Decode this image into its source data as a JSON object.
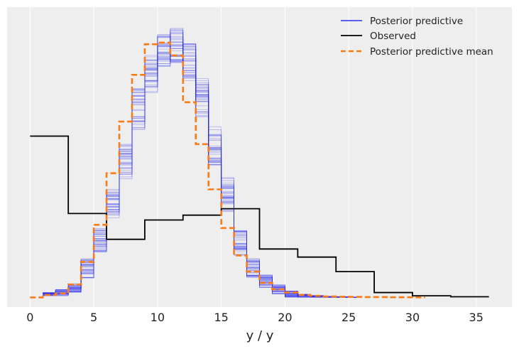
{
  "chart_data": {
    "type": "line",
    "title": "",
    "xlabel": "y / y",
    "ylabel": "",
    "xlim": [
      -1.8,
      37.8
    ],
    "ylim": [
      -0.006,
      0.18
    ],
    "grid": true,
    "legend_position": "top-right",
    "x_ticks": [
      0,
      5,
      10,
      15,
      20,
      25,
      30,
      35
    ],
    "colors": {
      "background": "#eeeeee",
      "grid": "#ffffff",
      "posterior_predictive": "#2a2eec",
      "observed": "#000000",
      "posterior_predictive_mean": "#fa7c17"
    },
    "series": [
      {
        "name": "Posterior predictive",
        "style": "step",
        "note_draws": 40,
        "bin_edges": [
          1,
          2,
          3,
          4,
          5,
          6,
          7,
          8,
          9,
          10,
          11,
          12,
          13,
          14,
          15,
          16,
          17,
          18,
          19,
          20,
          21,
          22,
          23,
          24,
          25,
          26
        ],
        "values": [
          0.002,
          0.003,
          0.006,
          0.018,
          0.035,
          0.058,
          0.084,
          0.117,
          0.139,
          0.154,
          0.156,
          0.146,
          0.124,
          0.094,
          0.064,
          0.034,
          0.018,
          0.01,
          0.005,
          0.002,
          0.001,
          0.0006,
          0.0003,
          0.0002,
          0.0001
        ],
        "spread": [
          0.001,
          0.002,
          0.003,
          0.006,
          0.008,
          0.009,
          0.012,
          0.013,
          0.012,
          0.011,
          0.011,
          0.012,
          0.013,
          0.012,
          0.011,
          0.008,
          0.006,
          0.004,
          0.003,
          0.002,
          0.001,
          0.0006,
          0.0003,
          0.0002,
          0.0001
        ]
      },
      {
        "name": "Observed",
        "style": "step",
        "bin_edges": [
          0,
          3,
          6,
          9,
          12,
          15,
          18,
          21,
          24,
          27,
          30,
          33,
          36
        ],
        "values": [
          0.1,
          0.052,
          0.036,
          0.048,
          0.051,
          0.055,
          0.03,
          0.025,
          0.016,
          0.003,
          0.001,
          0.0004
        ]
      },
      {
        "name": "Posterior predictive mean",
        "style": "step-dashed",
        "bin_edges": [
          0,
          1,
          2,
          3,
          4,
          5,
          6,
          7,
          8,
          9,
          10,
          11,
          12,
          13,
          14,
          15,
          16,
          17,
          18,
          19,
          20,
          21,
          22,
          23,
          24,
          25,
          26,
          27,
          28,
          29,
          30,
          31
        ],
        "values": [
          0.0,
          0.0015,
          0.0025,
          0.008,
          0.022,
          0.045,
          0.077,
          0.109,
          0.138,
          0.157,
          0.158,
          0.15,
          0.121,
          0.095,
          0.067,
          0.043,
          0.026,
          0.016,
          0.009,
          0.005,
          0.003,
          0.0015,
          0.001,
          0.0006,
          0.0004,
          0.0003,
          0.0002,
          0.0002,
          0.0001,
          0.0001,
          0.0
        ]
      }
    ]
  }
}
